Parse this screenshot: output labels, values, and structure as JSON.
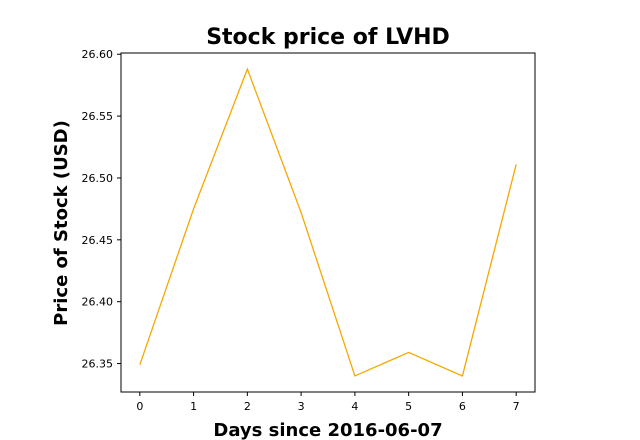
{
  "chart_data": {
    "type": "line",
    "title": "Stock price of LVHD",
    "xlabel": "Days since 2016-06-07",
    "ylabel": "Price of Stock (USD)",
    "x": [
      0,
      1,
      2,
      3,
      4,
      5,
      6,
      7
    ],
    "series": [
      {
        "values": [
          26.349,
          26.475,
          26.588,
          26.472,
          26.34,
          26.359,
          26.34,
          26.511
        ],
        "color": "#f5a800"
      }
    ],
    "xlim": [
      -0.35,
      7.35
    ],
    "ylim": [
      26.327,
      26.601
    ],
    "xticks": [
      0,
      1,
      2,
      3,
      4,
      5,
      6,
      7
    ],
    "yticks": [
      26.35,
      26.4,
      26.45,
      26.5,
      26.55,
      26.6
    ],
    "ytick_labels": [
      "26.35",
      "26.40",
      "26.45",
      "26.50",
      "26.55",
      "26.60"
    ],
    "grid": false,
    "legend": false
  }
}
